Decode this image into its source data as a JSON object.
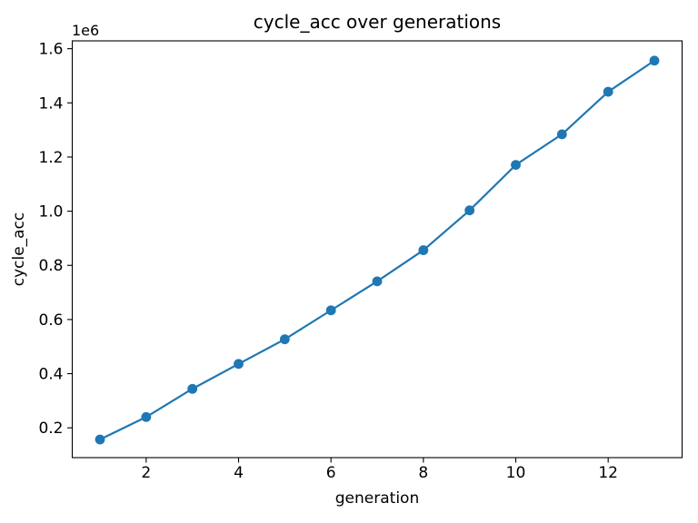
{
  "figure": {
    "background": "#ffffff"
  },
  "chart_data": {
    "type": "line",
    "title": "cycle_acc over generations",
    "xlabel": "generation",
    "ylabel": "cycle_acc",
    "y_offset_label": "1e6",
    "grid": false,
    "legend": false,
    "xlim": [
      0.4,
      13.6
    ],
    "ylim": [
      90000,
      1629000
    ],
    "x_ticks": [
      2,
      4,
      6,
      8,
      10,
      12
    ],
    "x_tick_labels": [
      "2",
      "4",
      "6",
      "8",
      "10",
      "12"
    ],
    "y_ticks": [
      200000,
      400000,
      600000,
      800000,
      1000000,
      1200000,
      1400000,
      1600000
    ],
    "y_tick_labels": [
      "0.2",
      "0.4",
      "0.6",
      "0.8",
      "1.0",
      "1.2",
      "1.4",
      "1.6"
    ],
    "series": [
      {
        "name": "cycle_acc",
        "color": "#1f77b4",
        "marker": "circle",
        "x": [
          1,
          2,
          3,
          4,
          5,
          6,
          7,
          8,
          9,
          10,
          11,
          12,
          13
        ],
        "y": [
          157000,
          240000,
          344000,
          436000,
          527000,
          634000,
          741000,
          856000,
          1003000,
          1171000,
          1284000,
          1441000,
          1556000
        ]
      }
    ]
  }
}
